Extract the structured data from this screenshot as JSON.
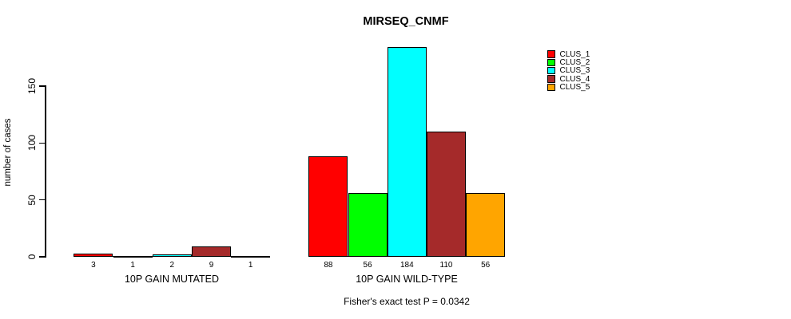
{
  "chart_data": {
    "type": "bar",
    "title": "MIRSEQ_CNMF",
    "ylabel": "number of cases",
    "yticks": [
      0,
      50,
      100,
      150
    ],
    "ylim": [
      0,
      184
    ],
    "grid": false,
    "legend_position": "right-outside",
    "series": [
      "CLUS_1",
      "CLUS_2",
      "CLUS_3",
      "CLUS_4",
      "CLUS_5"
    ],
    "colors": [
      "#ff0000",
      "#00ff00",
      "#00ffff",
      "#a52a2a",
      "#ffa500"
    ],
    "groups": [
      {
        "label": "10P GAIN MUTATED",
        "values": [
          3,
          1,
          2,
          9,
          1
        ]
      },
      {
        "label": "10P GAIN WILD-TYPE",
        "values": [
          88,
          56,
          184,
          110,
          56
        ]
      }
    ],
    "annotation": "Fisher's exact test P = 0.0342"
  }
}
